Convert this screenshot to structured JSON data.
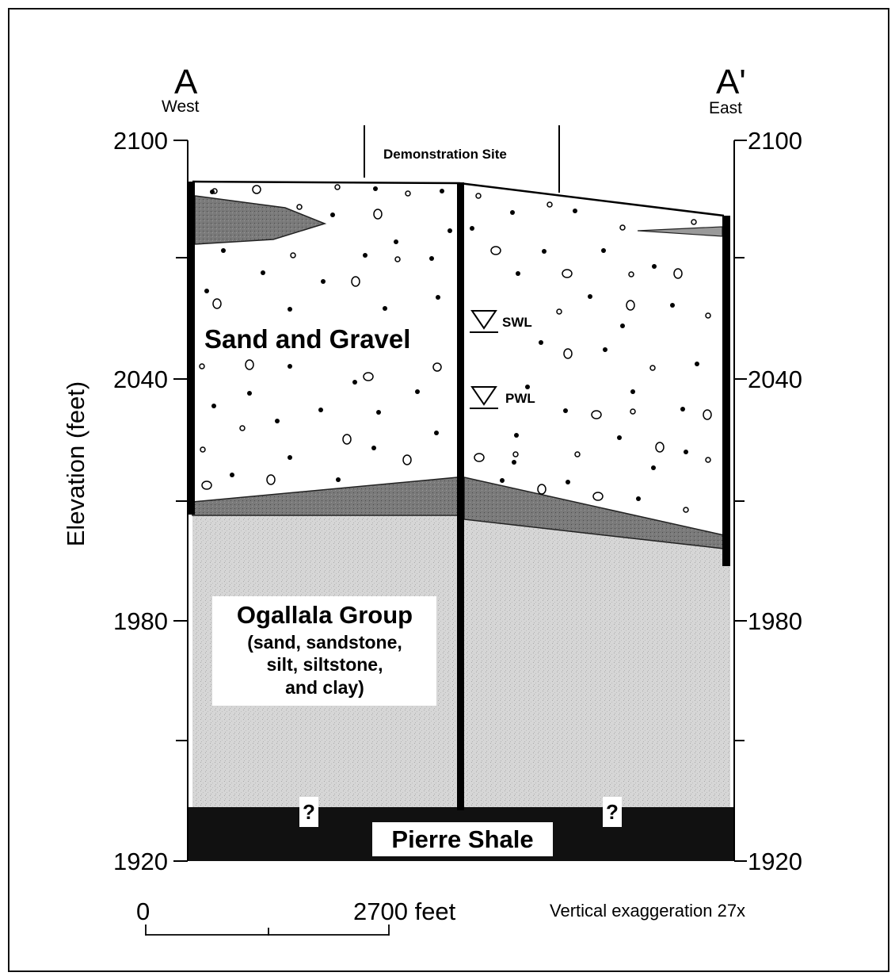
{
  "section": {
    "left_end_label": "A",
    "left_direction": "West",
    "right_end_label": "A'",
    "right_direction": "East",
    "site_label": "Demonstration Site"
  },
  "axis": {
    "ylabel": "Elevation (feet)",
    "left_ticks": [
      "2100",
      "2040",
      "1980",
      "1920"
    ],
    "right_ticks": [
      "2100",
      "2040",
      "1980",
      "1920"
    ]
  },
  "units": {
    "sand_gravel": "Sand and Gravel",
    "ogallala_title": "Ogallala Group",
    "ogallala_desc": [
      "(sand, sandstone,",
      "silt, siltstone,",
      "and clay)"
    ],
    "pierre": "Pierre Shale",
    "unknown_marker": "?"
  },
  "water_levels": {
    "static": "SWL",
    "pumping": "PWL"
  },
  "scale": {
    "start": "0",
    "end": "2700 feet",
    "vertical_exaggeration": "Vertical exaggeration 27x"
  },
  "colors": {
    "clay_lens": "#6e6e6e",
    "ogallala": "#d4d4d4",
    "shale": "#111111"
  }
}
